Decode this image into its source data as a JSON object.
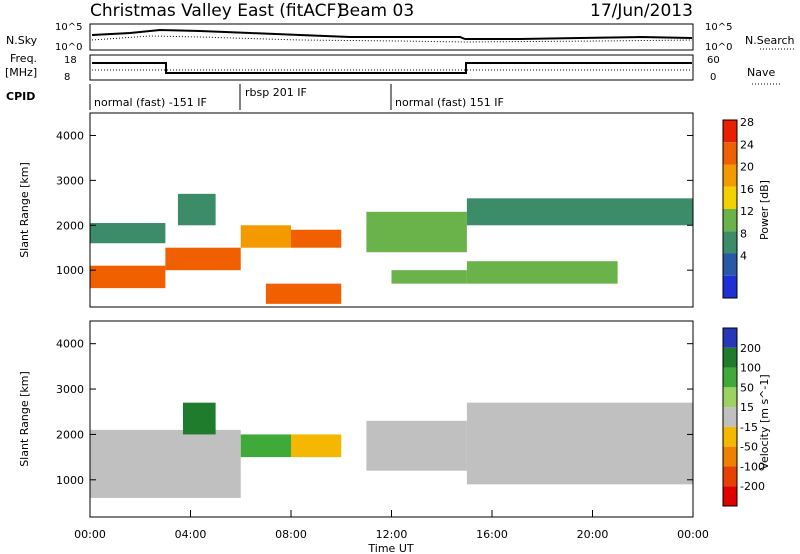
{
  "header": {
    "title": "Christmas Valley East (fitACF)",
    "beam_label": "Beam 03",
    "date": "17/Jun/2013"
  },
  "top_panels": {
    "nsky_label": "N.Sky",
    "nsearch_label": "N.Search",
    "nsky_ticks": [
      "10^5",
      "10^0"
    ],
    "freq_label_1": "Freq.",
    "freq_label_2": "[MHz]",
    "freq_ticks": [
      "18",
      "8"
    ],
    "nave_label": "Nave",
    "nave_ticks": [
      "60",
      "0"
    ],
    "cpid_label": "CPID",
    "cpid_segments": [
      "normal (fast) -151 IF",
      "rbsp 201 IF",
      "normal (fast) 151 IF"
    ]
  },
  "power_panel": {
    "ylabel": "Slant Range [km]",
    "yticks": [
      "4000",
      "3000",
      "2000",
      "1000"
    ],
    "colorbar_label": "Power [dB]",
    "colorbar_ticks": [
      "28",
      "24",
      "20",
      "16",
      "12",
      "8",
      "4"
    ],
    "colors": [
      "#1f2fd6",
      "#2a58a8",
      "#3c8c6a",
      "#6ab24a",
      "#f5d000",
      "#f39a00",
      "#f06000",
      "#e82000"
    ]
  },
  "velocity_panel": {
    "ylabel": "Slant Range [km]",
    "yticks": [
      "4000",
      "3000",
      "2000",
      "1000"
    ],
    "colorbar_label": "Velocity [m s^-1]",
    "colorbar_ticks": [
      "200",
      "100",
      "50",
      "15",
      "-15",
      "-50",
      "-100",
      "-200"
    ],
    "colors": [
      "#2438b8",
      "#1f7c2c",
      "#3faa3a",
      "#9bd260",
      "#c0c0c0",
      "#f5b800",
      "#f08000",
      "#e84000",
      "#e00000"
    ]
  },
  "x_axis": {
    "label": "Time UT",
    "ticks": [
      "00:00",
      "04:00",
      "08:00",
      "12:00",
      "16:00",
      "20:00",
      "00:00"
    ]
  },
  "chart_data": {
    "type": "heatmap",
    "title": "Christmas Valley East (fitACF)",
    "xlabel": "Time UT",
    "ylabel": "Slant Range [km]",
    "xlim": [
      "00:00",
      "24:00"
    ],
    "ylim": [
      180,
      4500
    ],
    "power_bands": [
      {
        "t0": 0,
        "t1": 3,
        "r0": 600,
        "r1": 1100,
        "power": 24
      },
      {
        "t0": 0,
        "t1": 3,
        "r0": 1600,
        "r1": 2050,
        "power": 8
      },
      {
        "t0": 3,
        "t1": 6,
        "r0": 1000,
        "r1": 1500,
        "power": 26
      },
      {
        "t0": 3.5,
        "t1": 5,
        "r0": 2000,
        "r1": 2700,
        "power": 10
      },
      {
        "t0": 6,
        "t1": 8,
        "r0": 1500,
        "r1": 2000,
        "power": 20
      },
      {
        "t0": 8,
        "t1": 10,
        "r0": 1500,
        "r1": 1900,
        "power": 26
      },
      {
        "t0": 7,
        "t1": 10,
        "r0": 250,
        "r1": 700,
        "power": 26
      },
      {
        "t0": 11,
        "t1": 15,
        "r0": 1400,
        "r1": 2300,
        "power": 14
      },
      {
        "t0": 12,
        "t1": 15,
        "r0": 700,
        "r1": 1000,
        "power": 12
      },
      {
        "t0": 15,
        "t1": 21,
        "r0": 700,
        "r1": 1200,
        "power": 14
      },
      {
        "t0": 15,
        "t1": 24,
        "r0": 2000,
        "r1": 2600,
        "power": 10
      }
    ],
    "velocity_bands": [
      {
        "t0": 0,
        "t1": 6,
        "r0": 600,
        "r1": 2100,
        "velocity": 0
      },
      {
        "t0": 3.7,
        "t1": 5.0,
        "r0": 2000,
        "r1": 2700,
        "velocity": 150
      },
      {
        "t0": 6,
        "t1": 8,
        "r0": 1500,
        "r1": 2000,
        "velocity": 80
      },
      {
        "t0": 8,
        "t1": 10,
        "r0": 1500,
        "r1": 2000,
        "velocity": -40
      },
      {
        "t0": 11,
        "t1": 15,
        "r0": 1200,
        "r1": 2300,
        "velocity": 0
      },
      {
        "t0": 15,
        "t1": 24,
        "r0": 900,
        "r1": 2700,
        "velocity": 0
      }
    ]
  }
}
